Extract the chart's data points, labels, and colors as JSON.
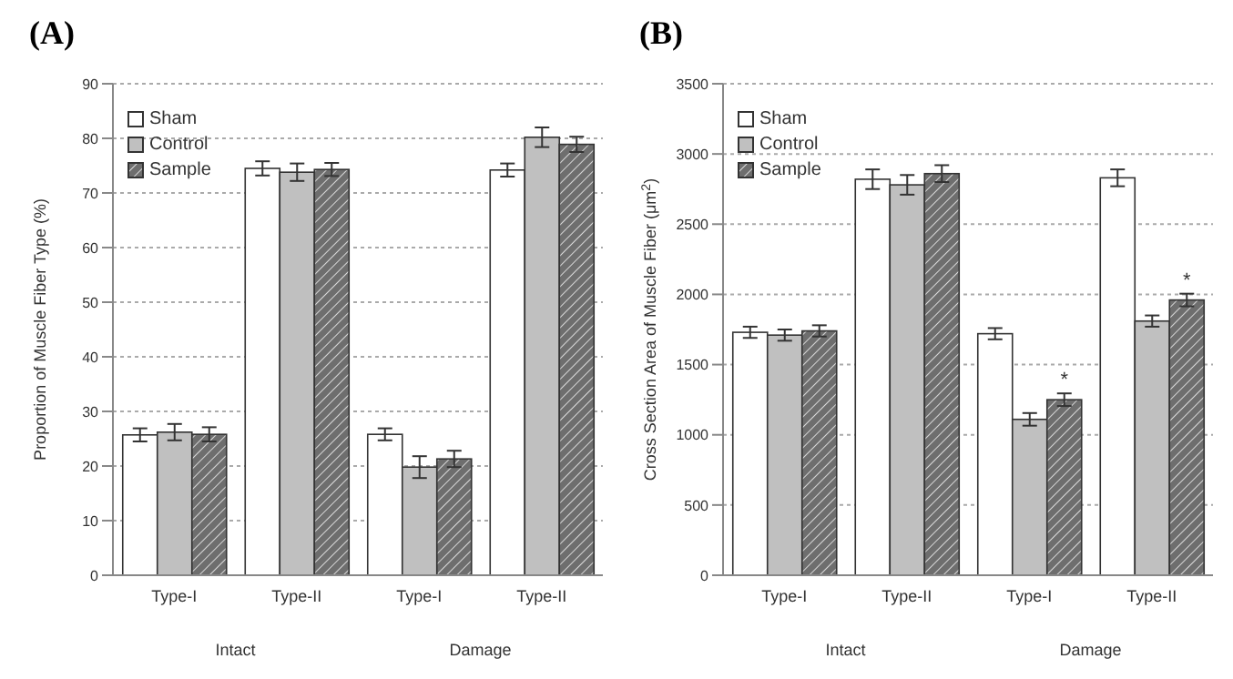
{
  "chart_data": [
    {
      "type": "bar",
      "title": "(A)",
      "ylabel": "Proportion of Muscle Fiber Type (%)",
      "categories": [
        "Type-I",
        "Type-II",
        "Type-I",
        "Type-II"
      ],
      "annotations": [
        "Intact",
        "Damage"
      ],
      "series": [
        {
          "name": "Sham",
          "color": "#ffffff",
          "values": [
            25.7,
            74.5,
            25.8,
            74.2
          ],
          "errors": [
            1.2,
            1.3,
            1.1,
            1.2
          ]
        },
        {
          "name": "Control",
          "color": "#c0c0c0",
          "values": [
            26.2,
            73.8,
            19.8,
            80.2
          ],
          "errors": [
            1.5,
            1.6,
            2.0,
            1.8
          ]
        },
        {
          "name": "Sample",
          "color": "#6e6e6e",
          "values": [
            25.8,
            74.3,
            21.3,
            78.9
          ],
          "errors": [
            1.3,
            1.2,
            1.5,
            1.4
          ]
        }
      ],
      "ylim": [
        0,
        90
      ],
      "yticks": [
        0,
        10,
        20,
        30,
        40,
        50,
        60,
        70,
        80,
        90
      ],
      "grid": "y",
      "legend": "top left"
    },
    {
      "type": "bar",
      "title": "(B)",
      "ylabel": "Cross Section Area of Muscle Fiber (μm$^{2}$)",
      "categories": [
        "Type-I",
        "Type-II",
        "Type-I",
        "Type-II"
      ],
      "annotations": [
        "Intact",
        "Damage"
      ],
      "series": [
        {
          "name": "Sham",
          "color": "#ffffff",
          "values": [
            1730,
            2820,
            1720,
            2830
          ],
          "errors": [
            40,
            70,
            40,
            60
          ]
        },
        {
          "name": "Control",
          "color": "#c0c0c0",
          "values": [
            1710,
            2780,
            1110,
            1810
          ],
          "errors": [
            40,
            70,
            45,
            40
          ]
        },
        {
          "name": "Sample",
          "color": "#6e6e6e",
          "values": [
            1740,
            2860,
            1250,
            1960
          ],
          "errors": [
            40,
            60,
            45,
            45
          ],
          "value_labels": [
            null,
            null,
            "*",
            "*"
          ]
        }
      ],
      "ylim": [
        0,
        3500
      ],
      "yticks": [
        0,
        500,
        1000,
        1500,
        2000,
        2500,
        3000,
        3500
      ],
      "grid": "y",
      "legend": "top left"
    }
  ]
}
